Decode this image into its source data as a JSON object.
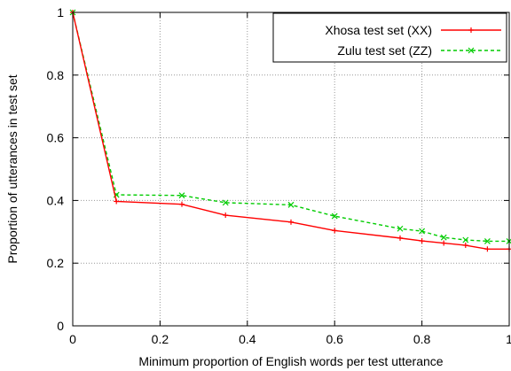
{
  "chart_data": {
    "type": "line",
    "xlabel": "Minimum proportion of English words per test utterance",
    "ylabel": "Proportion of utterances in test set",
    "xlim": [
      0,
      1
    ],
    "ylim": [
      0,
      1
    ],
    "xticks": [
      "0",
      "0.2",
      "0.4",
      "0.6",
      "0.8",
      "1"
    ],
    "yticks": [
      "0",
      "0.2",
      "0.4",
      "0.6",
      "0.8",
      "1"
    ],
    "grid": true,
    "legend_position": "top-right",
    "series": [
      {
        "name": "Xhosa test set (XX)",
        "color": "#ff0000",
        "marker": "plus",
        "line_style": "solid",
        "x": [
          0,
          0.1,
          0.25,
          0.35,
          0.5,
          0.6,
          0.75,
          0.8,
          0.85,
          0.9,
          0.95,
          1.0
        ],
        "y": [
          1.0,
          0.397,
          0.388,
          0.353,
          0.331,
          0.304,
          0.28,
          0.271,
          0.264,
          0.257,
          0.245,
          0.245
        ]
      },
      {
        "name": "Zulu  test set (ZZ)",
        "color": "#00cc00",
        "marker": "x",
        "line_style": "dashed",
        "x": [
          0,
          0.1,
          0.25,
          0.35,
          0.5,
          0.6,
          0.75,
          0.8,
          0.85,
          0.9,
          0.95,
          1.0
        ],
        "y": [
          1.0,
          0.418,
          0.416,
          0.393,
          0.386,
          0.35,
          0.31,
          0.302,
          0.282,
          0.274,
          0.27,
          0.27
        ]
      }
    ]
  }
}
